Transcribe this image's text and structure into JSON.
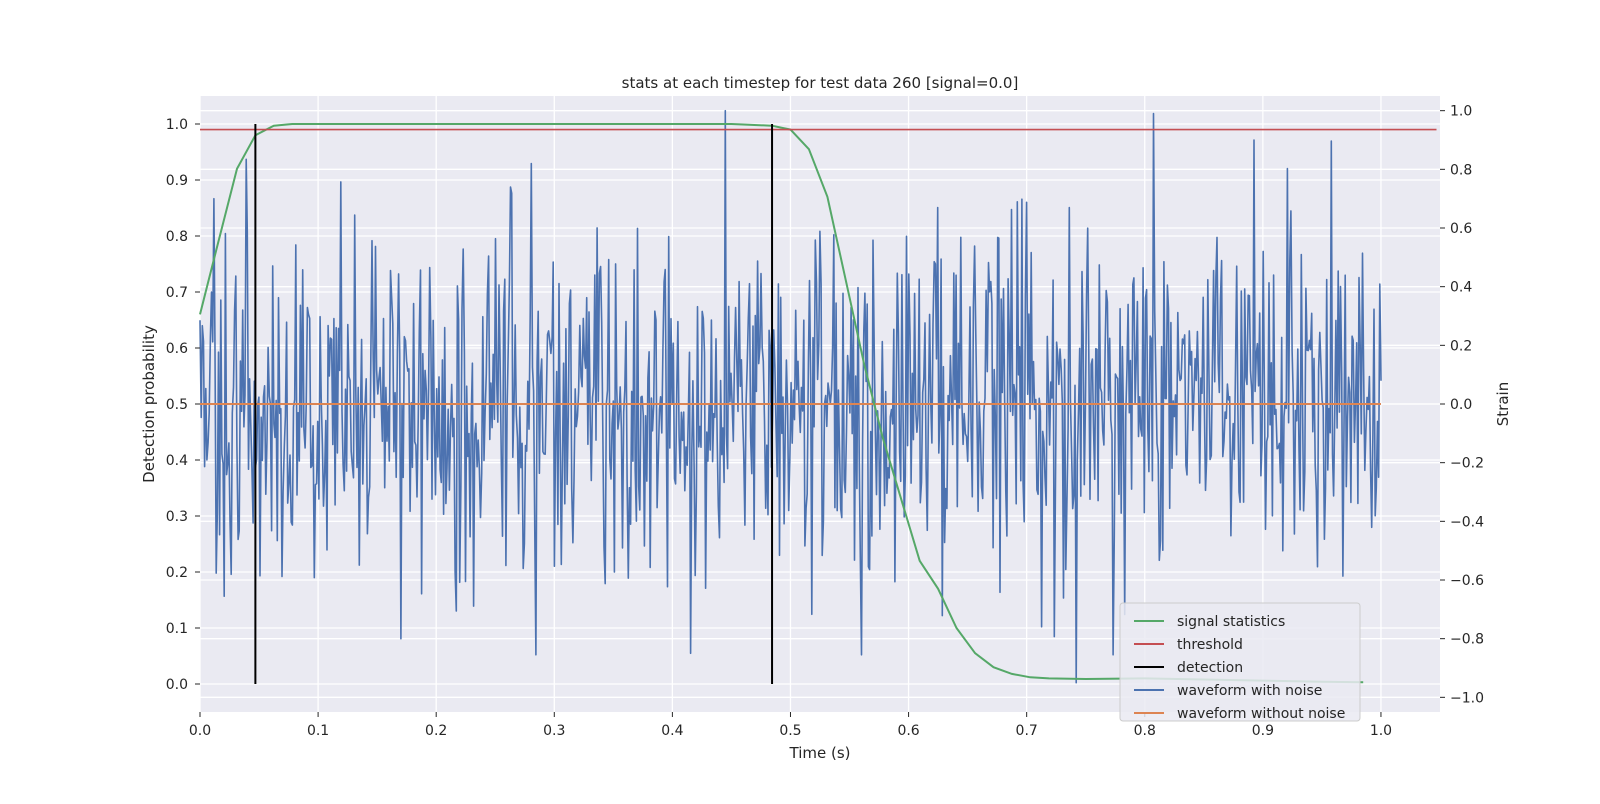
{
  "chart_data": {
    "type": "line",
    "title": "stats at each timestep for test data 260 [signal=0.0]",
    "xlabel": "Time (s)",
    "ylabel_left": "Detection probability",
    "ylabel_right": "Strain",
    "xlim": [
      0.0,
      1.05
    ],
    "ylim_left": [
      -0.05,
      1.05
    ],
    "ylim_right": [
      -1.05,
      1.05
    ],
    "x_ticks": [
      "0.0",
      "0.1",
      "0.2",
      "0.3",
      "0.4",
      "0.5",
      "0.6",
      "0.7",
      "0.8",
      "0.9",
      "1.0"
    ],
    "y_ticks_left": [
      "0.0",
      "0.1",
      "0.2",
      "0.3",
      "0.4",
      "0.5",
      "0.6",
      "0.7",
      "0.8",
      "0.9",
      "1.0"
    ],
    "y_ticks_right": [
      "−1.0",
      "−0.8",
      "−0.6",
      "−0.4",
      "−0.2",
      "0.0",
      "0.2",
      "0.4",
      "0.6",
      "0.8",
      "1.0"
    ],
    "grid": true,
    "legend_position": "lower-right",
    "series": [
      {
        "name": "signal statistics",
        "axis": "left",
        "color": "#55a868",
        "x": [
          0.0,
          0.0156,
          0.0313,
          0.0469,
          0.0625,
          0.0781,
          0.1,
          0.2,
          0.3,
          0.4,
          0.45,
          0.4844,
          0.5,
          0.5156,
          0.5313,
          0.5469,
          0.5625,
          0.5781,
          0.5938,
          0.6094,
          0.625,
          0.6406,
          0.6563,
          0.6719,
          0.6875,
          0.7031,
          0.7188,
          0.75,
          0.8,
          0.85,
          0.9,
          0.95,
          0.985
        ],
        "y": [
          0.66,
          0.79,
          0.92,
          0.98,
          0.997,
          1.0,
          1.0,
          1.0,
          1.0,
          1.0,
          1.0,
          0.997,
          0.99,
          0.955,
          0.87,
          0.72,
          0.57,
          0.44,
          0.33,
          0.22,
          0.17,
          0.1,
          0.055,
          0.03,
          0.018,
          0.012,
          0.01,
          0.009,
          0.01,
          0.008,
          0.006,
          0.004,
          0.003
        ]
      },
      {
        "name": "threshold",
        "axis": "left",
        "color": "#c44e52",
        "x": [
          0.0,
          1.047
        ],
        "y": [
          0.99,
          0.99
        ]
      },
      {
        "name": "detection",
        "axis": "left",
        "color": "#000000",
        "x": [
          0.0469,
          0.4844
        ],
        "y_range": [
          0.0,
          1.0
        ]
      },
      {
        "name": "waveform with noise",
        "axis": "right",
        "color": "#4c72b0",
        "x_range": [
          0.0,
          1.0
        ],
        "n_points": 1024,
        "y_stats": {
          "std": 0.3,
          "min": -0.95,
          "max": 1.0
        },
        "extreme_points": [
          {
            "x": 0.445,
            "y": 1.0
          },
          {
            "x": 0.807,
            "y": 0.99
          },
          {
            "x": 0.742,
            "y": -0.95
          },
          {
            "x": 0.415,
            "y": -0.85
          },
          {
            "x": 0.17,
            "y": -0.8
          },
          {
            "x": 0.012,
            "y": 0.7
          },
          {
            "x": 0.281,
            "y": 0.82
          },
          {
            "x": 0.892,
            "y": 0.9
          }
        ]
      },
      {
        "name": "waveform without noise",
        "axis": "right",
        "color": "#dd8452",
        "x": [
          0.0,
          1.0
        ],
        "y": [
          0.0,
          0.0
        ]
      }
    ]
  }
}
